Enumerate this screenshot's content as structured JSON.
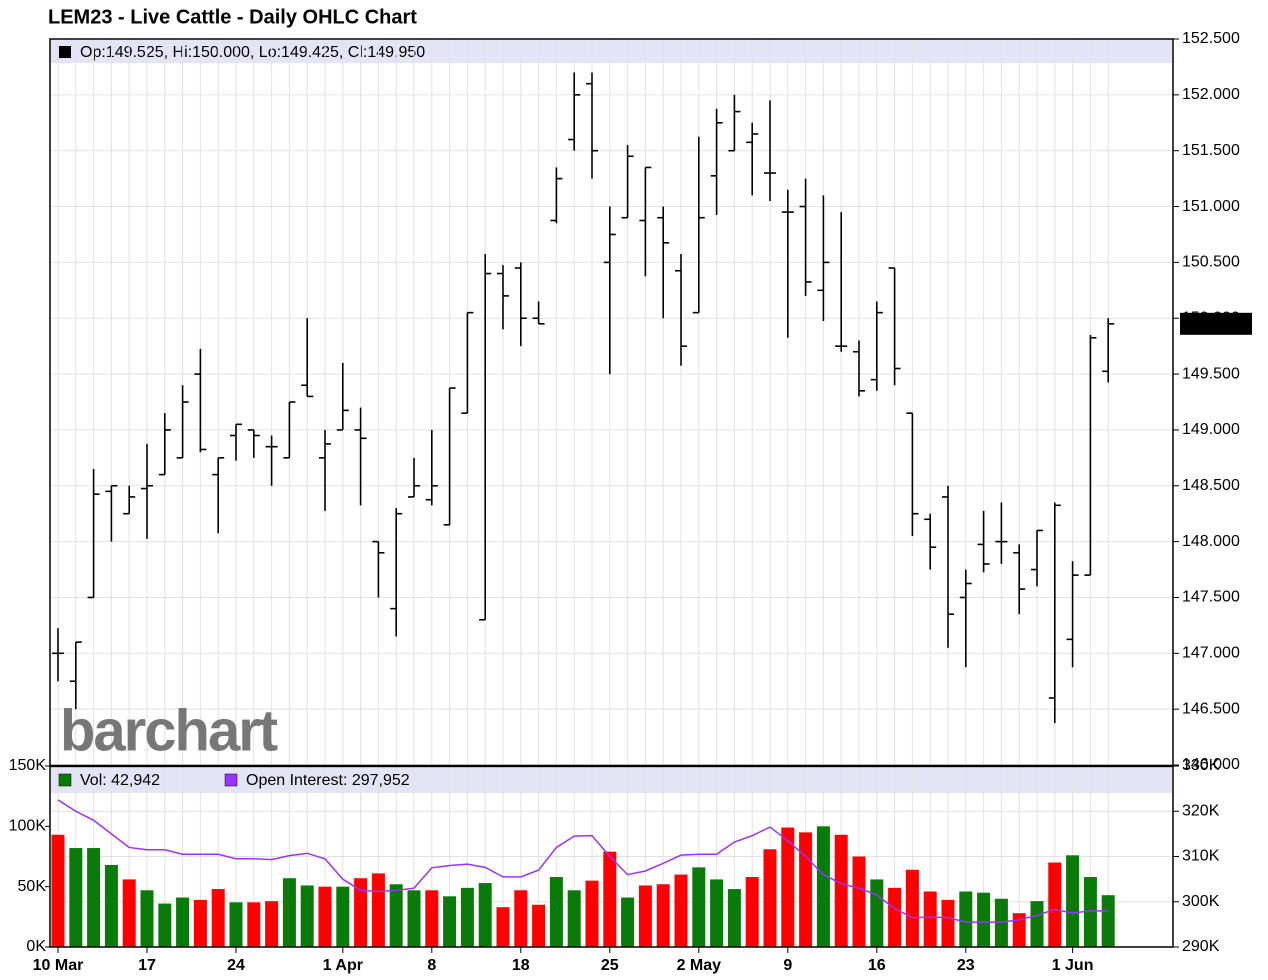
{
  "chart_data": [
    {
      "type": "ohlc",
      "title": "LEM23 - Live Cattle - Daily OHLC Chart",
      "legend_text": "Op:149.525, Hi:150.000, Lo:149.425, Cl:149.950",
      "last_label": "149.950",
      "watermark": "barchart",
      "color": "#000000",
      "grid": true,
      "categories": [
        "10 Mar",
        null,
        null,
        null,
        null,
        "17",
        null,
        null,
        null,
        null,
        "24",
        null,
        null,
        null,
        null,
        null,
        "1 Apr",
        null,
        null,
        null,
        null,
        "8",
        null,
        null,
        null,
        null,
        "18",
        null,
        null,
        null,
        null,
        "25",
        null,
        null,
        null,
        null,
        "2 May",
        null,
        null,
        null,
        null,
        "9",
        null,
        null,
        null,
        null,
        "16",
        null,
        null,
        null,
        null,
        "23",
        null,
        null,
        null,
        null,
        null,
        "1 Jun",
        null,
        null
      ],
      "open": [
        147.0,
        146.75,
        147.5,
        148.45,
        148.25,
        148.475,
        148.6,
        148.75,
        149.5,
        148.6,
        148.95,
        149.0,
        148.85,
        148.75,
        149.4,
        148.75,
        149.0,
        149.0,
        148.0,
        147.4,
        148.4,
        148.375,
        148.15,
        149.15,
        147.3,
        150.4,
        150.45,
        150.0,
        150.875,
        151.6,
        152.1,
        150.5,
        150.9,
        150.875,
        150.9,
        150.425,
        150.05,
        151.275,
        151.5,
        151.575,
        151.3,
        150.95,
        151.0,
        150.25,
        149.75,
        149.7,
        149.45,
        150.45,
        149.15,
        148.2,
        148.4,
        147.5,
        147.975,
        148.0,
        147.9,
        147.75,
        146.6,
        147.125,
        147.7,
        149.525
      ],
      "high": [
        147.225,
        147.1,
        148.65,
        148.5,
        148.5,
        148.875,
        149.15,
        149.4,
        149.725,
        148.75,
        149.05,
        149.0,
        148.95,
        149.25,
        150.0,
        149.0,
        149.6,
        149.2,
        148.0,
        148.3,
        148.75,
        149.0,
        149.375,
        150.05,
        150.575,
        150.475,
        150.5,
        150.15,
        151.35,
        152.2,
        152.2,
        151.0,
        151.55,
        151.35,
        151.0,
        150.575,
        151.625,
        151.875,
        152.0,
        151.75,
        151.95,
        151.15,
        151.25,
        151.1,
        150.95,
        149.8,
        150.15,
        150.45,
        149.15,
        148.25,
        148.5,
        147.75,
        148.275,
        148.35,
        147.975,
        148.1,
        148.35,
        147.825,
        149.85,
        150.0
      ],
      "low": [
        146.75,
        146.5,
        147.5,
        148.0,
        148.25,
        148.025,
        148.6,
        148.75,
        148.8,
        148.075,
        148.725,
        148.75,
        148.5,
        148.75,
        149.3,
        148.275,
        149.0,
        148.325,
        147.5,
        147.15,
        148.4,
        148.325,
        148.15,
        149.15,
        147.3,
        149.9,
        149.75,
        149.95,
        150.85,
        151.5,
        151.25,
        149.5,
        150.9,
        150.375,
        150.0,
        149.575,
        150.05,
        150.925,
        151.5,
        151.1,
        151.05,
        149.825,
        150.2,
        149.975,
        149.7,
        149.3,
        149.35,
        149.4,
        148.05,
        147.75,
        147.05,
        146.875,
        147.725,
        147.8,
        147.35,
        147.6,
        146.375,
        146.875,
        147.7,
        149.425
      ],
      "close": [
        147.0,
        147.1,
        148.425,
        148.5,
        148.4,
        148.5,
        149.0,
        149.25,
        148.825,
        148.75,
        149.05,
        148.95,
        148.85,
        149.25,
        149.3,
        148.875,
        149.175,
        148.925,
        147.9,
        148.25,
        148.5,
        148.5,
        149.375,
        150.05,
        150.4,
        150.2,
        150.0,
        149.95,
        151.25,
        152.0,
        151.5,
        150.75,
        151.45,
        151.35,
        150.675,
        149.75,
        150.9,
        151.75,
        151.85,
        151.65,
        151.3,
        150.95,
        150.325,
        150.5,
        149.75,
        149.35,
        150.05,
        149.55,
        148.25,
        147.95,
        147.35,
        147.625,
        147.8,
        148.0,
        147.575,
        148.1,
        148.325,
        147.7,
        149.825,
        149.95
      ],
      "ylim": [
        146.0,
        152.5
      ],
      "yticks": [
        {
          "value": 146.0,
          "label": "146.000"
        },
        {
          "value": 146.5,
          "label": "146.500"
        },
        {
          "value": 147.0,
          "label": "147.000"
        },
        {
          "value": 147.5,
          "label": "147.500"
        },
        {
          "value": 148.0,
          "label": "148.000"
        },
        {
          "value": 148.5,
          "label": "148.500"
        },
        {
          "value": 149.0,
          "label": "149.000"
        },
        {
          "value": 149.5,
          "label": "149.500"
        },
        {
          "value": 150.0,
          "label": "150.000"
        },
        {
          "value": 150.5,
          "label": "150.500"
        },
        {
          "value": 151.0,
          "label": "151.000"
        },
        {
          "value": 151.5,
          "label": "151.500"
        },
        {
          "value": 152.0,
          "label": "152.000"
        },
        {
          "value": 152.5,
          "label": "152.500"
        }
      ]
    },
    {
      "type": "bar",
      "series": [
        {
          "name": "Vol: 42,942",
          "color": "#0a7a0a",
          "colors": [
            "#ff0000",
            "#0a7a0a",
            "#0a7a0a",
            "#0a7a0a",
            "#ff0000",
            "#0a7a0a",
            "#0a7a0a",
            "#0a7a0a",
            "#ff0000",
            "#ff0000",
            "#0a7a0a",
            "#ff0000",
            "#ff0000",
            "#0a7a0a",
            "#0a7a0a",
            "#ff0000",
            "#0a7a0a",
            "#ff0000",
            "#ff0000",
            "#0a7a0a",
            "#0a7a0a",
            "#ff0000",
            "#0a7a0a",
            "#0a7a0a",
            "#0a7a0a",
            "#ff0000",
            "#ff0000",
            "#ff0000",
            "#0a7a0a",
            "#0a7a0a",
            "#ff0000",
            "#ff0000",
            "#0a7a0a",
            "#ff0000",
            "#ff0000",
            "#ff0000",
            "#0a7a0a",
            "#0a7a0a",
            "#0a7a0a",
            "#ff0000",
            "#ff0000",
            "#ff0000",
            "#ff0000",
            "#0a7a0a",
            "#ff0000",
            "#ff0000",
            "#0a7a0a",
            "#ff0000",
            "#ff0000",
            "#ff0000",
            "#ff0000",
            "#0a7a0a",
            "#0a7a0a",
            "#0a7a0a",
            "#ff0000",
            "#0a7a0a",
            "#ff0000",
            "#0a7a0a",
            "#0a7a0a",
            "#0a7a0a"
          ],
          "values": [
            93,
            82,
            82,
            68,
            56,
            47,
            36,
            41,
            39,
            48,
            37,
            37,
            38,
            57,
            51,
            50,
            50,
            57,
            61,
            52,
            47,
            47,
            42,
            49,
            53,
            33,
            47,
            35,
            58,
            47,
            55,
            79,
            41,
            51,
            52,
            60,
            66,
            56,
            48,
            58,
            81,
            99,
            95,
            100,
            93,
            75,
            56,
            49,
            64,
            46,
            39,
            46,
            45,
            40,
            28,
            38,
            70,
            76,
            58,
            42.942
          ]
        },
        {
          "name": "Open Interest: 297,952",
          "color": "#9933ff",
          "type": "line",
          "axis": "y2",
          "values": [
            322.5,
            320,
            318,
            315,
            312,
            311.5,
            311.5,
            310.5,
            310.5,
            310.5,
            309.5,
            309.5,
            309.3,
            310.2,
            310.7,
            309.5,
            305,
            302.5,
            302.3,
            302.5,
            303,
            307.5,
            308,
            308.3,
            307.6,
            305.5,
            305.5,
            307,
            312,
            314.5,
            314.6,
            310,
            306,
            306.8,
            308.5,
            310.3,
            310.5,
            310.5,
            313.2,
            314.6,
            316.5,
            313.5,
            310,
            306,
            304,
            303,
            301.5,
            298.5,
            296.5,
            296.6,
            296.5,
            295.5,
            295.5,
            295.5,
            296,
            297,
            298.3,
            297.5,
            298,
            297.952
          ]
        }
      ],
      "ylim": [
        0,
        150
      ],
      "yticks": [
        {
          "value": 0,
          "label": "0K"
        },
        {
          "value": 50,
          "label": "50K"
        },
        {
          "value": 100,
          "label": "100K"
        },
        {
          "value": 150,
          "label": "150K"
        }
      ],
      "y2lim": [
        290,
        330
      ],
      "y2ticks": [
        {
          "value": 290,
          "label": "290K"
        },
        {
          "value": 300,
          "label": "300K"
        },
        {
          "value": 310,
          "label": "310K"
        },
        {
          "value": 320,
          "label": "320K"
        },
        {
          "value": 330,
          "label": "330K"
        }
      ]
    }
  ]
}
